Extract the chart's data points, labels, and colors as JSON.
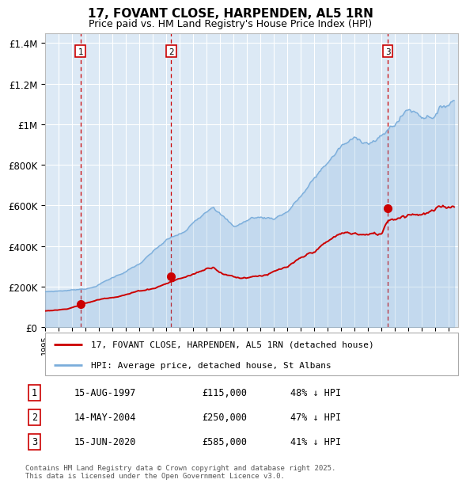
{
  "title": "17, FOVANT CLOSE, HARPENDEN, AL5 1RN",
  "subtitle": "Price paid vs. HM Land Registry's House Price Index (HPI)",
  "title_fontsize": 11,
  "subtitle_fontsize": 9,
  "background_color": "#ffffff",
  "plot_bg_color": "#dce9f5",
  "grid_color": "#ffffff",
  "red_line_color": "#cc0000",
  "blue_line_color": "#7aaddb",
  "sale_marker_color": "#cc0000",
  "ylim": [
    0,
    1450000
  ],
  "ytick_labels": [
    "£0",
    "£200K",
    "£400K",
    "£600K",
    "£800K",
    "£1M",
    "£1.2M",
    "£1.4M"
  ],
  "ytick_values": [
    0,
    200000,
    400000,
    600000,
    800000,
    1000000,
    1200000,
    1400000
  ],
  "legend_red_label": "17, FOVANT CLOSE, HARPENDEN, AL5 1RN (detached house)",
  "legend_blue_label": "HPI: Average price, detached house, St Albans",
  "sale_1_date": 1997.62,
  "sale_1_price": 115000,
  "sale_2_date": 2004.37,
  "sale_2_price": 250000,
  "sale_3_date": 2020.46,
  "sale_3_price": 585000,
  "footer_text": "Contains HM Land Registry data © Crown copyright and database right 2025.\nThis data is licensed under the Open Government Licence v3.0.",
  "table_data": [
    {
      "num": "1",
      "date": "15-AUG-1997",
      "price": "£115,000",
      "hpi": "48% ↓ HPI"
    },
    {
      "num": "2",
      "date": "14-MAY-2004",
      "price": "£250,000",
      "hpi": "47% ↓ HPI"
    },
    {
      "num": "3",
      "date": "15-JUN-2020",
      "price": "£585,000",
      "hpi": "41% ↓ HPI"
    }
  ]
}
